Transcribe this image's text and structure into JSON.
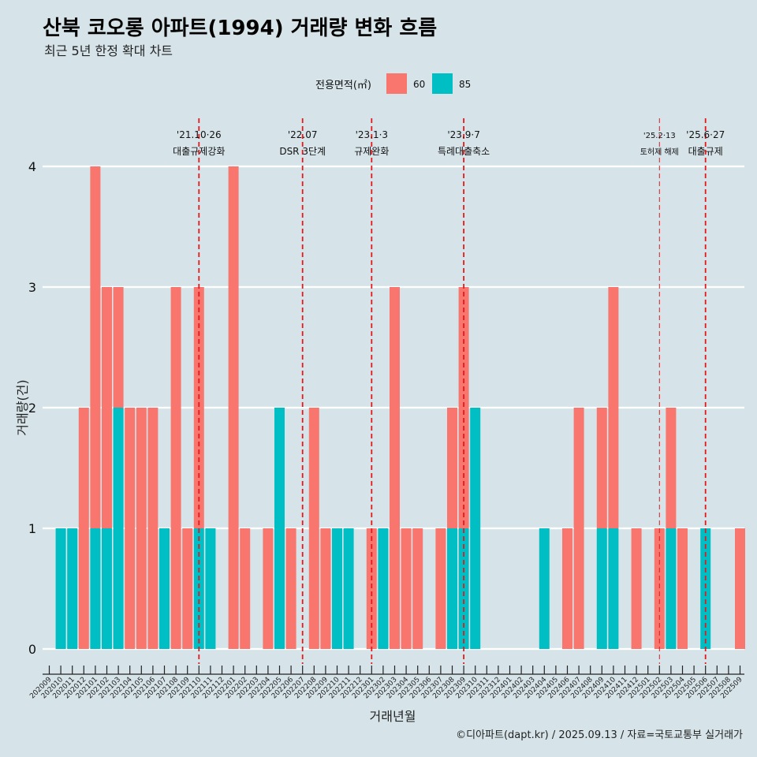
{
  "title": "산북 코오롱 아파트(1994) 거래량 변화 흐름",
  "subtitle": "최근 5년 한정 확대 차트",
  "caption": "©디아파트(dapt.kr) / 2025.09.13 / 자료=국토교통부 실거래가",
  "colors": {
    "s60": "#f8766d",
    "s85": "#00bfc4",
    "background": "#d6e4ea",
    "grid": "#ffffff",
    "vline": "#e31a1c"
  },
  "chart_data": {
    "type": "bar",
    "xlabel": "거래년월",
    "ylabel": "거래량(건)",
    "ylim": [
      0,
      4
    ],
    "yticks": [
      0,
      1,
      2,
      3,
      4
    ],
    "grid": true,
    "legend": {
      "title": "전용면적(㎡)",
      "placement": "top"
    },
    "categories": [
      "202009",
      "202010",
      "202011",
      "202012",
      "202101",
      "202102",
      "202103",
      "202104",
      "202105",
      "202106",
      "202107",
      "202108",
      "202109",
      "202110",
      "202111",
      "202112",
      "202201",
      "202202",
      "202203",
      "202204",
      "202205",
      "202206",
      "202207",
      "202208",
      "202209",
      "202210",
      "202211",
      "202212",
      "202301",
      "202302",
      "202303",
      "202304",
      "202305",
      "202306",
      "202307",
      "202308",
      "202309",
      "202310",
      "202311",
      "202312",
      "202401",
      "202402",
      "202403",
      "202404",
      "202405",
      "202406",
      "202407",
      "202408",
      "202409",
      "202410",
      "202411",
      "202412",
      "202501",
      "202502",
      "202503",
      "202504",
      "202505",
      "202506",
      "202507",
      "202508",
      "202509"
    ],
    "series": [
      {
        "name": "60",
        "values": [
          0,
          0,
          0,
          2,
          3,
          2,
          1,
          2,
          2,
          2,
          0,
          3,
          1,
          2,
          0,
          0,
          4,
          1,
          0,
          1,
          0,
          1,
          0,
          2,
          1,
          0,
          0,
          0,
          1,
          0,
          3,
          1,
          1,
          0,
          1,
          1,
          2,
          0,
          0,
          0,
          0,
          0,
          0,
          0,
          0,
          1,
          2,
          0,
          1,
          2,
          0,
          1,
          0,
          1,
          1,
          1,
          0,
          0,
          0,
          0,
          1
        ]
      },
      {
        "name": "85",
        "values": [
          0,
          1,
          1,
          0,
          1,
          1,
          2,
          0,
          0,
          0,
          1,
          0,
          0,
          1,
          1,
          0,
          0,
          0,
          0,
          0,
          2,
          0,
          0,
          0,
          0,
          1,
          1,
          0,
          0,
          1,
          0,
          0,
          0,
          0,
          0,
          1,
          1,
          2,
          0,
          0,
          0,
          0,
          0,
          1,
          0,
          0,
          0,
          0,
          1,
          1,
          0,
          0,
          0,
          0,
          1,
          0,
          0,
          1,
          0,
          0,
          0
        ]
      }
    ],
    "annotations": [
      {
        "label_top": "'21.10·26",
        "label_bottom": "대출규제강화",
        "x": "202110",
        "style": "bold"
      },
      {
        "label_top": "'22.07",
        "label_bottom": "DSR 3단계",
        "x": "202207",
        "style": "bold"
      },
      {
        "label_top": "'23.1·3",
        "label_bottom": "규제완화",
        "x": "202301",
        "style": "bold"
      },
      {
        "label_top": "'23.9·7",
        "label_bottom": "특례대출축소",
        "x": "202309",
        "style": "bold"
      },
      {
        "label_top": "'25.2·13",
        "label_bottom": "토허제 해제",
        "x": "202502",
        "style": "thin"
      },
      {
        "label_top": "'25.6·27",
        "label_bottom": "대출규제",
        "x": "202506",
        "style": "bold"
      }
    ]
  }
}
